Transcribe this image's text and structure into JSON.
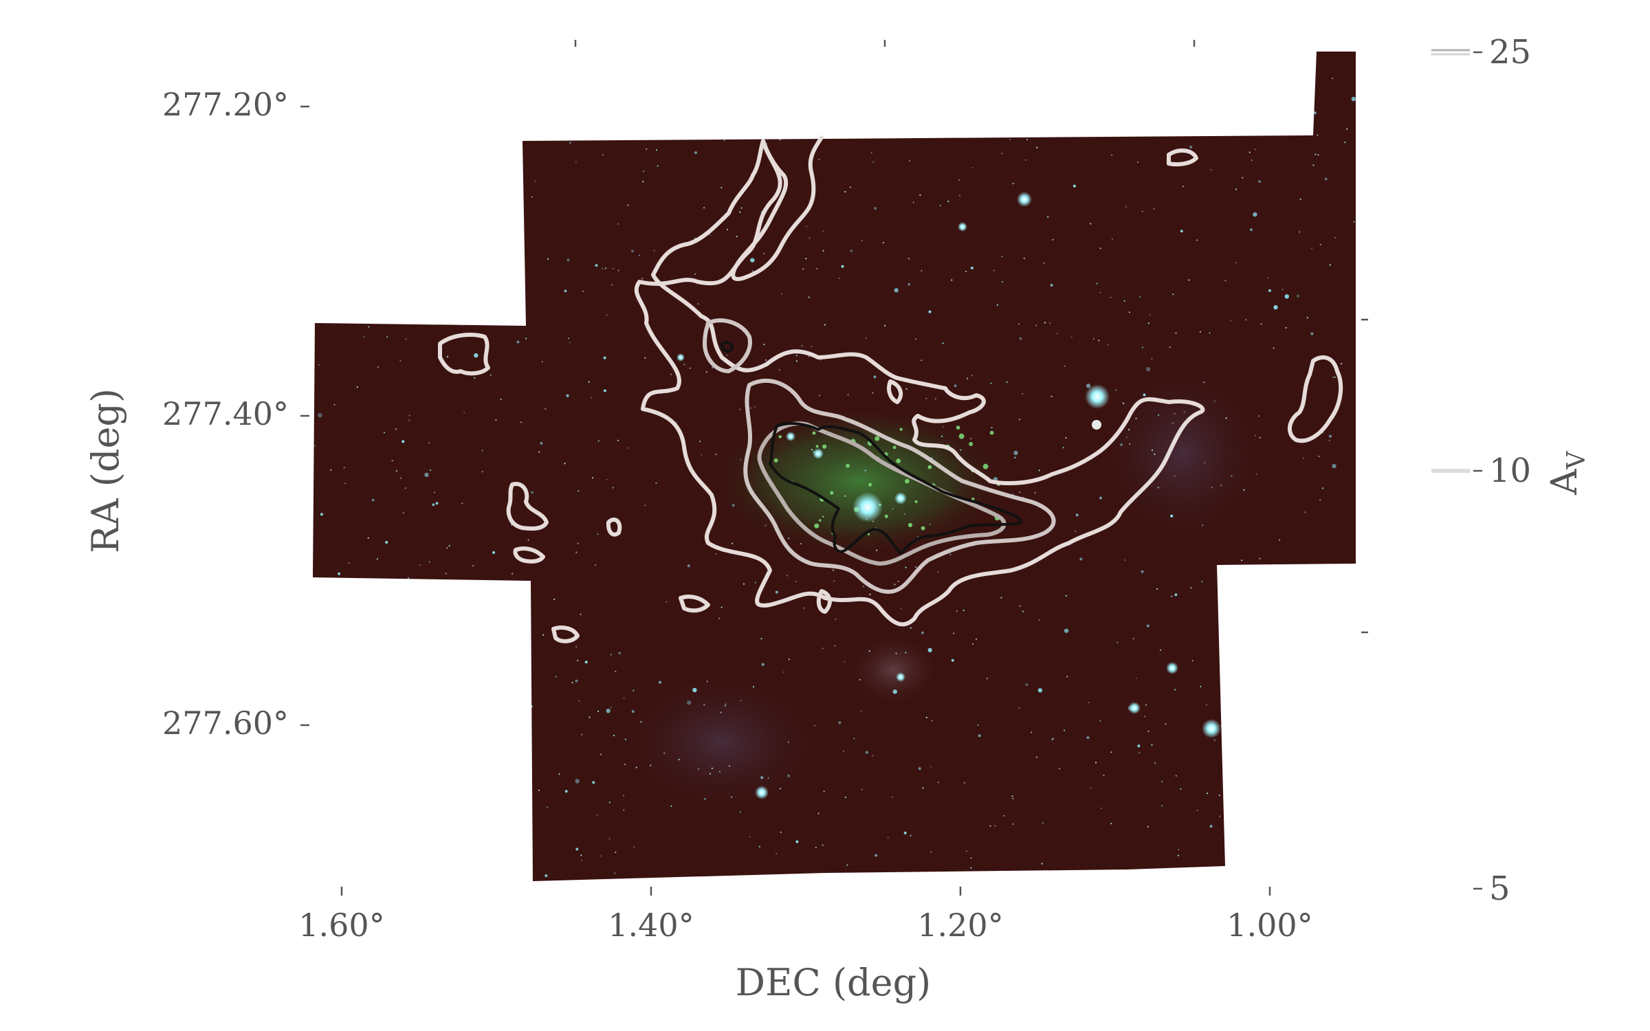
{
  "axes": {
    "xlabel": "DEC (deg)",
    "ylabel": "RA (deg)",
    "x_ticks": [
      "1.60°",
      "1.40°",
      "1.20°",
      "1.00°"
    ],
    "y_ticks": [
      "277.20°",
      "277.40°",
      "277.60°"
    ]
  },
  "colorbar": {
    "label": "A",
    "label_sub": "V",
    "ticks": [
      "25",
      "10",
      "5"
    ]
  },
  "colors": {
    "background": "#ffffff",
    "image_base": "#3a1210",
    "contour_light": "#e6dcda",
    "contour_mid": "#cfc6c4",
    "contour_inner": "#b8aeab",
    "contour_dark": "#111111",
    "star_color": "#8ff0ff",
    "text": "#555555"
  }
}
